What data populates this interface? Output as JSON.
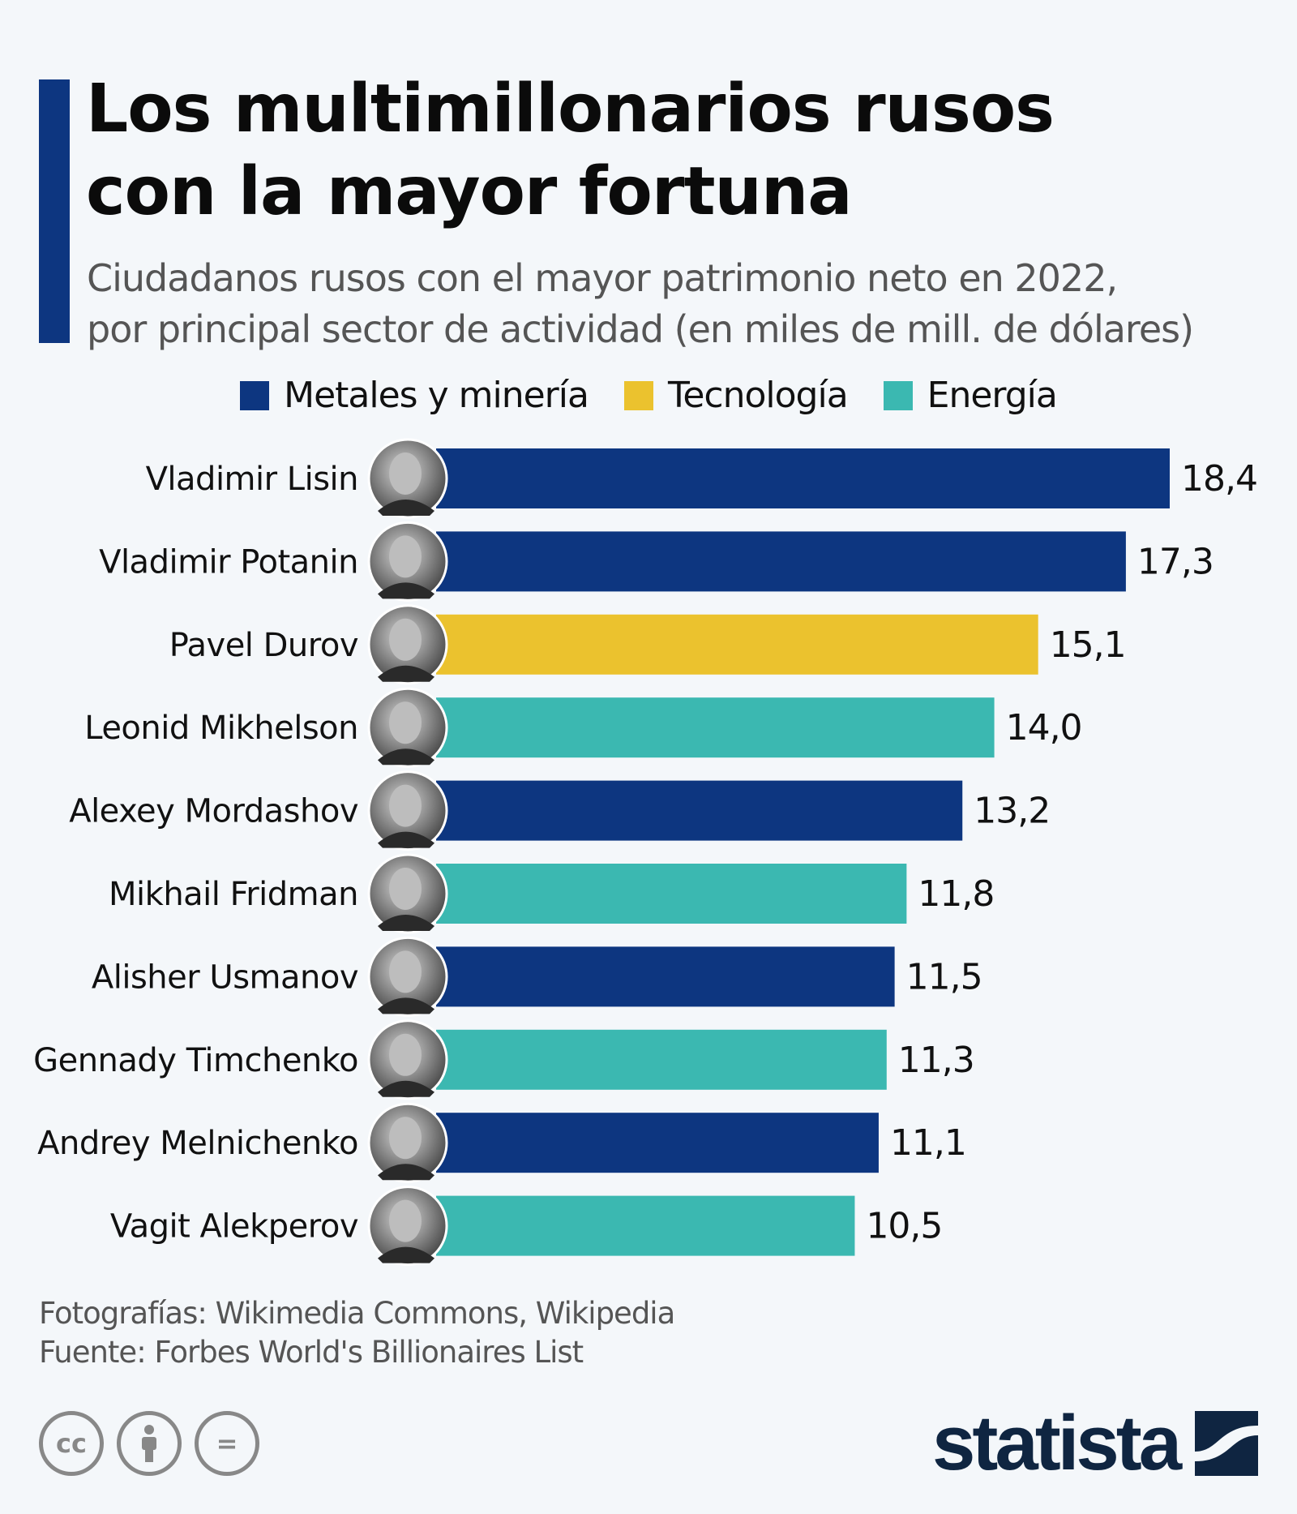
{
  "title": "Los multimillonarios rusos con la mayor fortuna",
  "title_lines": [
    "Los multimillonarios rusos",
    "con la mayor fortuna"
  ],
  "subtitle_lines": [
    "Ciudadanos rusos con el mayor patrimonio neto en 2022,",
    "por principal sector de actividad (en miles de mill. de dólares)"
  ],
  "legend": [
    {
      "label": "Metales y minería",
      "color": "#0d3680"
    },
    {
      "label": "Tecnología",
      "color": "#ebc22e"
    },
    {
      "label": "Energía",
      "color": "#3bb8b1"
    }
  ],
  "chart_data": {
    "type": "bar",
    "orientation": "horizontal",
    "categories": [
      "Vladimir Lisin",
      "Vladimir Potanin",
      "Pavel Durov",
      "Leonid Mikhelson",
      "Alexey Mordashov",
      "Mikhail Fridman",
      "Alisher Usmanov",
      "Gennady Timchenko",
      "Andrey Melnichenko",
      "Vagit Alekperov"
    ],
    "values": [
      18.4,
      17.3,
      15.1,
      14.0,
      13.2,
      11.8,
      11.5,
      11.3,
      11.1,
      10.5
    ],
    "labels": [
      "18,4",
      "17,3",
      "15,1",
      "14,0",
      "13,2",
      "11,8",
      "11,5",
      "11,3",
      "11,1",
      "10,5"
    ],
    "sectors": [
      "Metales y minería",
      "Metales y minería",
      "Tecnología",
      "Energía",
      "Metales y minería",
      "Energía",
      "Metales y minería",
      "Energía",
      "Metales y minería",
      "Energía"
    ],
    "title": "Los multimillonarios rusos con la mayor fortuna",
    "xlabel": "",
    "ylabel": "",
    "xlim": [
      0,
      18.4
    ],
    "grid": false,
    "legend_position": "top"
  },
  "footer": {
    "photos": "Fotografías: Wikimedia Commons, Wikipedia",
    "source": "Fuente: Forbes World's Billionaires List"
  },
  "license_icons": [
    "cc-icon",
    "attribution-icon",
    "no-derivatives-icon"
  ],
  "license_text": {
    "cc": "cc",
    "nd": "="
  },
  "brand": "statista"
}
